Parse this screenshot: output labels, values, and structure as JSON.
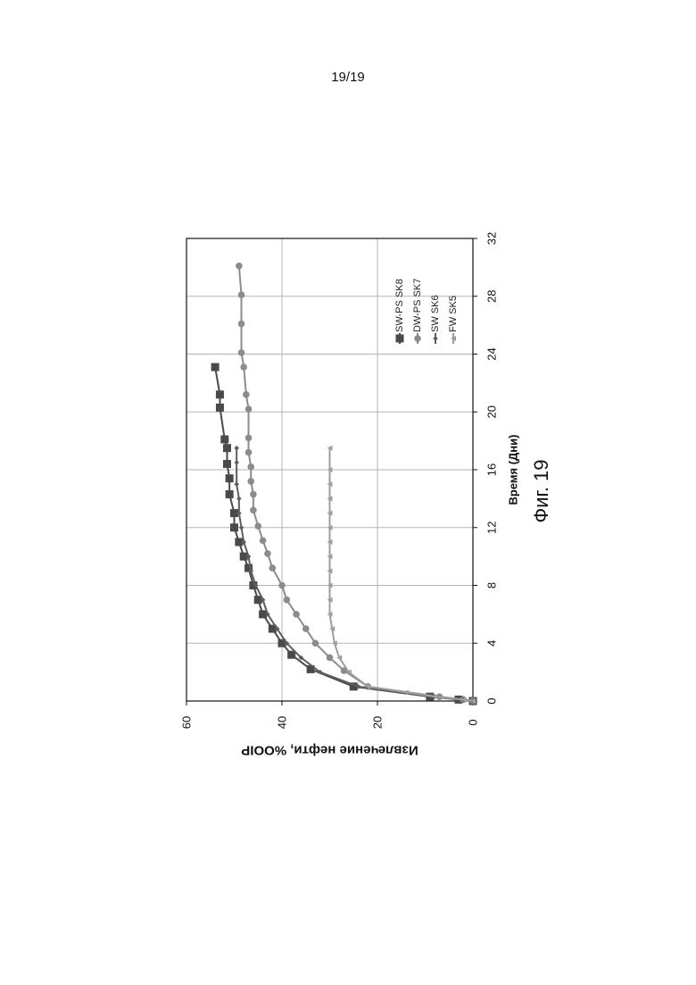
{
  "page": {
    "number": "19/19",
    "caption": "Фиг. 19"
  },
  "chart_data": {
    "type": "line",
    "xlabel": "Время (Дни)",
    "ylabel": "Извлечение нефти, %OOIP",
    "xlim": [
      0,
      32
    ],
    "ylim": [
      0,
      60
    ],
    "xticks": [
      0,
      4,
      8,
      12,
      16,
      20,
      24,
      28,
      32
    ],
    "yticks": [
      0,
      20,
      40,
      60
    ],
    "grid": true,
    "orientation": "rotated 90° counter-clockwise on page",
    "legend_position": "top-right",
    "series": [
      {
        "name": "SW-PS SK8",
        "marker": "square",
        "color": "#4a4a4a",
        "x": [
          0,
          0.1,
          0.3,
          1.0,
          2.2,
          3.2,
          4.0,
          5.0,
          6.0,
          7.0,
          8.0,
          9.2,
          10.0,
          11.0,
          12.0,
          13.0,
          14.3,
          15.4,
          16.4,
          17.5,
          18.1,
          20.3,
          21.2,
          23.1
        ],
        "y": [
          0,
          3,
          9,
          25,
          34,
          38,
          40,
          42,
          44,
          45,
          46,
          47,
          48,
          49,
          50,
          50,
          51,
          51,
          51.5,
          51.5,
          52,
          53,
          53,
          54
        ]
      },
      {
        "name": "DW-PS SK7",
        "marker": "circle",
        "color": "#8c8c8c",
        "x": [
          0,
          0.1,
          0.3,
          1.0,
          2.1,
          3.0,
          4.0,
          5.0,
          6.0,
          7.0,
          8.0,
          9.2,
          10.2,
          11.1,
          12.1,
          13.2,
          14.3,
          15.2,
          16.2,
          17.2,
          18.2,
          20.2,
          21.2,
          23.1,
          24.1,
          26.1,
          28.1,
          30.1
        ],
        "y": [
          0,
          2,
          7,
          22,
          27,
          30,
          33,
          35,
          37,
          39,
          40,
          42,
          43,
          44,
          45,
          46,
          46,
          46.5,
          46.5,
          47,
          47,
          47,
          47.5,
          48,
          48.5,
          48.5,
          48.5,
          49
        ]
      },
      {
        "name": "SW SK6",
        "marker": "diamond",
        "color": "#5e5e5e",
        "x": [
          0,
          0.1,
          0.3,
          1.0,
          2.0,
          3.0,
          4.0,
          5.0,
          6.0,
          7.0,
          8.0,
          9.0,
          10.0,
          11.0,
          12.0,
          13.0,
          14.0,
          15.0,
          16.5,
          17.5
        ],
        "y": [
          0,
          2,
          8,
          24,
          32,
          36,
          39,
          41,
          43,
          44,
          45.5,
          46.5,
          47,
          48,
          48.5,
          49,
          49,
          49.5,
          49.5,
          49.5
        ]
      },
      {
        "name": "FW SK5",
        "marker": "triangle",
        "color": "#9e9e9e",
        "x": [
          0,
          0.1,
          0.3,
          0.6,
          1.0,
          2.0,
          3.0,
          4.0,
          5.0,
          6.0,
          7.0,
          8.0,
          9.0,
          10.0,
          11.0,
          12.0,
          13.0,
          14.0,
          15.0,
          16.0,
          17.5
        ],
        "y": [
          0,
          2,
          8,
          14,
          22,
          26,
          28,
          29,
          29.5,
          30,
          30,
          30,
          30,
          30,
          30,
          30,
          30,
          30,
          30,
          30,
          30
        ]
      }
    ]
  }
}
